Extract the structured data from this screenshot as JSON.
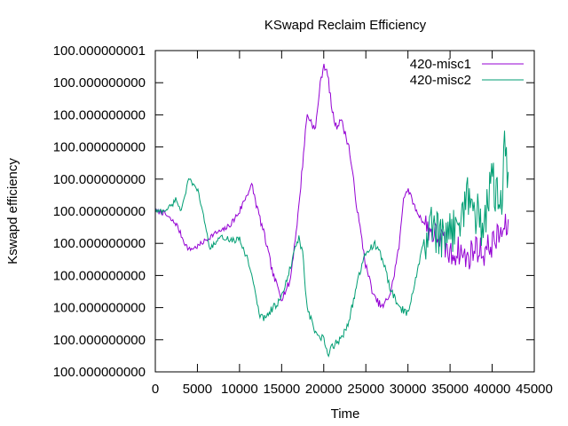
{
  "chart_data": {
    "type": "line",
    "title": "KSwapd Reclaim Efficiency",
    "xlabel": "Time",
    "ylabel": "Kswapd efficiency",
    "xlim": [
      0,
      45000
    ],
    "ylim": [
      0,
      10
    ],
    "x_ticks": [
      {
        "v": 0,
        "label": "0"
      },
      {
        "v": 5000,
        "label": "5000"
      },
      {
        "v": 10000,
        "label": "10000"
      },
      {
        "v": 15000,
        "label": "15000"
      },
      {
        "v": 20000,
        "label": "20000"
      },
      {
        "v": 25000,
        "label": "25000"
      },
      {
        "v": 30000,
        "label": "30000"
      },
      {
        "v": 35000,
        "label": "35000"
      },
      {
        "v": 40000,
        "label": "40000"
      },
      {
        "v": 45000,
        "label": "45000"
      }
    ],
    "y_ticks": [
      {
        "v": 0,
        "label": "100.000000000"
      },
      {
        "v": 1,
        "label": "100.000000000"
      },
      {
        "v": 2,
        "label": "100.000000000"
      },
      {
        "v": 3,
        "label": "100.000000000"
      },
      {
        "v": 4,
        "label": "100.000000000"
      },
      {
        "v": 5,
        "label": "100.000000000"
      },
      {
        "v": 6,
        "label": "100.000000000"
      },
      {
        "v": 7,
        "label": "100.000000000"
      },
      {
        "v": 8,
        "label": "100.000000000"
      },
      {
        "v": 9,
        "label": "100.000000000"
      },
      {
        "v": 10,
        "label": "100.000000001"
      }
    ],
    "grid": false,
    "legend": "top-right",
    "series": [
      {
        "name": "420-misc1",
        "color": "#9400d3",
        "points": [
          [
            0,
            5.0
          ],
          [
            1000,
            4.95
          ],
          [
            2000,
            4.7
          ],
          [
            2500,
            4.6
          ],
          [
            3000,
            4.3
          ],
          [
            3500,
            4.0
          ],
          [
            4000,
            3.8
          ],
          [
            5000,
            3.9
          ],
          [
            6000,
            4.1
          ],
          [
            7000,
            4.3
          ],
          [
            8000,
            4.4
          ],
          [
            9000,
            4.6
          ],
          [
            10000,
            5.0
          ],
          [
            11000,
            5.6
          ],
          [
            11500,
            5.8
          ],
          [
            12000,
            5.2
          ],
          [
            13000,
            4.2
          ],
          [
            14000,
            3.0
          ],
          [
            15000,
            2.3
          ],
          [
            16000,
            2.8
          ],
          [
            17000,
            5.0
          ],
          [
            17500,
            6.5
          ],
          [
            18000,
            8.0
          ],
          [
            18500,
            7.8
          ],
          [
            19000,
            7.5
          ],
          [
            19500,
            8.8
          ],
          [
            20000,
            9.6
          ],
          [
            20500,
            9.2
          ],
          [
            21000,
            8.1
          ],
          [
            21500,
            7.6
          ],
          [
            22000,
            7.9
          ],
          [
            23000,
            7.0
          ],
          [
            24000,
            5.0
          ],
          [
            25000,
            3.3
          ],
          [
            26000,
            2.3
          ],
          [
            27000,
            2.0
          ],
          [
            28000,
            2.5
          ],
          [
            29000,
            4.0
          ],
          [
            29500,
            5.5
          ],
          [
            30000,
            5.7
          ],
          [
            31000,
            5.0
          ],
          [
            32000,
            4.6
          ],
          [
            33000,
            4.3
          ],
          [
            34000,
            4.1
          ],
          [
            35000,
            3.6
          ],
          [
            36000,
            3.8
          ],
          [
            37000,
            3.5
          ],
          [
            38000,
            3.9
          ],
          [
            39000,
            3.7
          ],
          [
            40000,
            4.0
          ],
          [
            41000,
            4.3
          ],
          [
            42000,
            4.6
          ]
        ]
      },
      {
        "name": "420-misc2",
        "color": "#009e73",
        "points": [
          [
            0,
            5.0
          ],
          [
            1000,
            5.0
          ],
          [
            2000,
            5.2
          ],
          [
            2500,
            5.4
          ],
          [
            3000,
            5.0
          ],
          [
            3500,
            5.5
          ],
          [
            4000,
            6.0
          ],
          [
            4500,
            5.8
          ],
          [
            5000,
            5.7
          ],
          [
            6000,
            4.5
          ],
          [
            6500,
            3.8
          ],
          [
            7000,
            4.0
          ],
          [
            8000,
            4.2
          ],
          [
            9000,
            4.1
          ],
          [
            10000,
            4.1
          ],
          [
            11000,
            3.5
          ],
          [
            11500,
            3.0
          ],
          [
            12000,
            2.2
          ],
          [
            12500,
            1.7
          ],
          [
            13000,
            1.7
          ],
          [
            14000,
            2.0
          ],
          [
            15000,
            2.3
          ],
          [
            16000,
            3.2
          ],
          [
            17000,
            4.2
          ],
          [
            17500,
            3.7
          ],
          [
            18000,
            2.0
          ],
          [
            19000,
            1.2
          ],
          [
            20000,
            1.0
          ],
          [
            20500,
            0.5
          ],
          [
            21000,
            0.8
          ],
          [
            22000,
            1.0
          ],
          [
            23000,
            1.6
          ],
          [
            24000,
            2.8
          ],
          [
            25000,
            3.7
          ],
          [
            26000,
            4.0
          ],
          [
            27000,
            3.5
          ],
          [
            28000,
            2.5
          ],
          [
            29000,
            2.0
          ],
          [
            30000,
            1.8
          ],
          [
            31000,
            3.0
          ],
          [
            32000,
            4.2
          ],
          [
            33000,
            4.5
          ],
          [
            34000,
            4.0
          ],
          [
            35000,
            4.3
          ],
          [
            36000,
            4.8
          ],
          [
            37000,
            5.5
          ],
          [
            38000,
            5.0
          ],
          [
            39000,
            4.5
          ],
          [
            40000,
            6.0
          ],
          [
            41000,
            5.0
          ],
          [
            41500,
            7.0
          ],
          [
            42000,
            5.5
          ]
        ]
      }
    ]
  }
}
